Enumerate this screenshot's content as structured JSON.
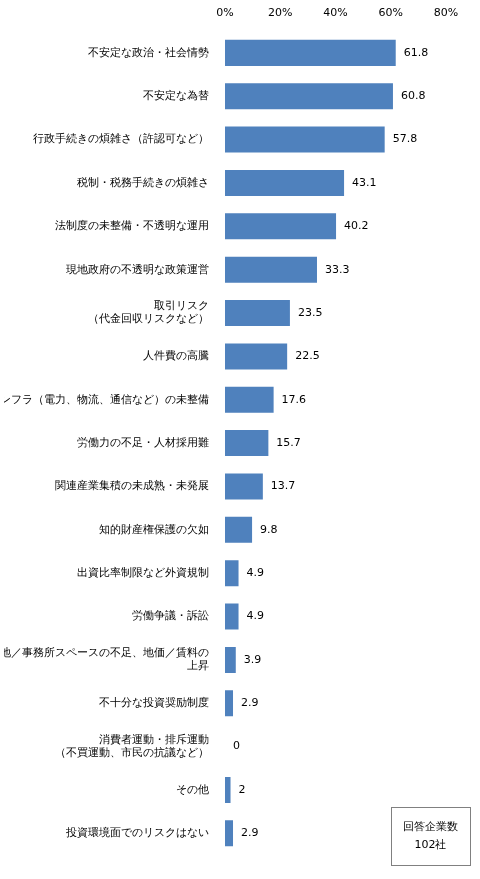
{
  "chart_data": {
    "type": "bar",
    "orientation": "horizontal",
    "categories": [
      "不安定な政治・社会情勢",
      "不安定な為替",
      "行政手続きの煩雑さ（許認可など）",
      "税制・税務手続きの煩雑さ",
      "法制度の未整備・不透明な運用",
      "現地政府の不透明な政策運営",
      "取引リスク\n（代金回収リスクなど）",
      "人件費の高騰",
      "インフラ（電力、物流、通信など）の未整備",
      "労働力の不足・人材採用難",
      "関連産業集積の未成熟・未発展",
      "知的財産権保護の欠如",
      "出資比率制限など外資規制",
      "労働争議・訴訟",
      "土地／事務所スペースの不足、地価／賃料の\n上昇",
      "不十分な投資奨励制度",
      "消費者運動・排斥運動\n（不買運動、市民の抗議など）",
      "その他",
      "投資環境面でのリスクはない"
    ],
    "values": [
      61.8,
      60.8,
      57.8,
      43.1,
      40.2,
      33.3,
      23.5,
      22.5,
      17.6,
      15.7,
      13.7,
      9.8,
      4.9,
      4.9,
      3.9,
      2.9,
      0,
      2,
      2.9
    ],
    "color": "#4f81bd",
    "xlim": [
      0,
      80
    ],
    "xticks": [
      {
        "value": 0,
        "label": "0%"
      },
      {
        "value": 20,
        "label": "20%"
      },
      {
        "value": 40,
        "label": "40%"
      },
      {
        "value": 60,
        "label": "60%"
      },
      {
        "value": 80,
        "label": "80%"
      }
    ],
    "grid": false,
    "data_labels": true,
    "annotation": "回答企業数\n102社"
  }
}
